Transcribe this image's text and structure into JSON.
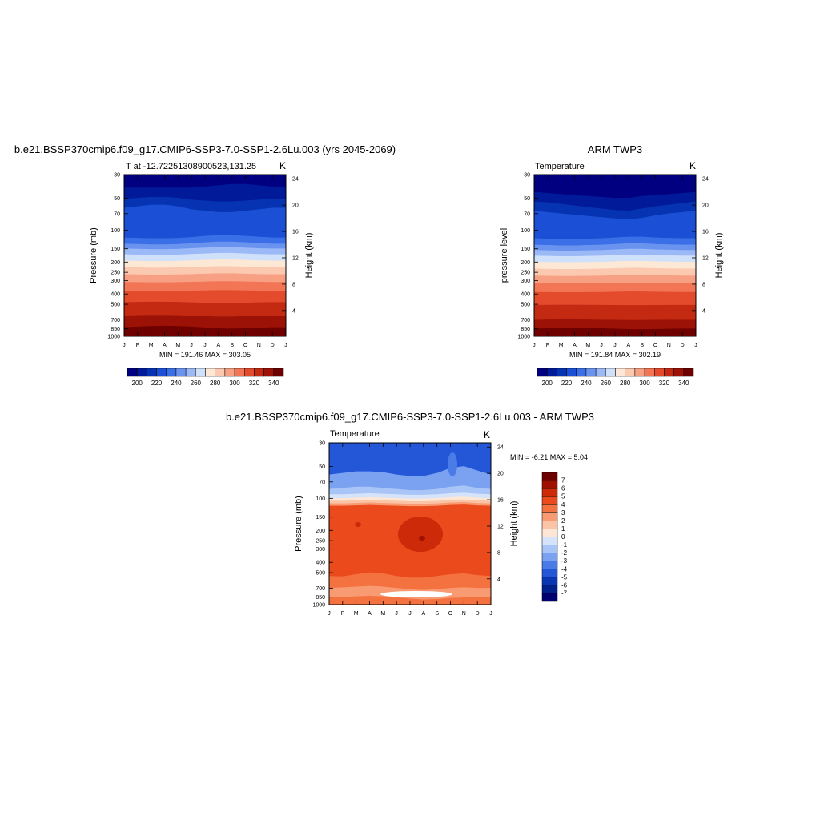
{
  "chart_data": [
    {
      "type": "heatmap",
      "title": "b.e21.BSSP370cmip6.f09_g17.CMIP6-SSP3-7.0-SSP1-2.6Lu.003 (yrs 2045-2069)",
      "subtitle_left": "T at -12.72251308900523,131.25",
      "subtitle_right": "K",
      "ylabel": "Pressure (mb)",
      "ylabel_right": "Height (km)",
      "x_ticks": [
        "J",
        "F",
        "M",
        "A",
        "M",
        "J",
        "J",
        "A",
        "S",
        "O",
        "N",
        "D",
        "J"
      ],
      "y_ticks": [
        "30",
        "50",
        "70",
        "100",
        "150",
        "200",
        "250",
        "300",
        "400",
        "500",
        "700",
        "850",
        "1000"
      ],
      "y_ticks_right": [
        "24",
        "20",
        "16",
        "12",
        "8",
        "4"
      ],
      "stats": "MIN = 191.46 MAX = 303.05",
      "min": 191.46,
      "max": 303.05,
      "colorbar": {
        "ticks": [
          "200",
          "220",
          "240",
          "260",
          "280",
          "300",
          "320",
          "340"
        ]
      }
    },
    {
      "type": "heatmap",
      "title": "ARM TWP3",
      "subtitle_left": "Temperature",
      "subtitle_right": "K",
      "ylabel": "pressure level",
      "ylabel_right": "Height (km)",
      "x_ticks": [
        "J",
        "F",
        "M",
        "A",
        "M",
        "J",
        "J",
        "A",
        "S",
        "O",
        "N",
        "D",
        "J"
      ],
      "y_ticks": [
        "30",
        "50",
        "70",
        "100",
        "150",
        "200",
        "250",
        "300",
        "400",
        "500",
        "700",
        "850",
        "1000"
      ],
      "y_ticks_right": [
        "24",
        "20",
        "16",
        "12",
        "8",
        "4"
      ],
      "stats": "MIN = 191.84 MAX = 302.19",
      "min": 191.84,
      "max": 302.19,
      "colorbar": {
        "ticks": [
          "200",
          "220",
          "240",
          "260",
          "280",
          "300",
          "320",
          "340"
        ]
      }
    },
    {
      "type": "heatmap",
      "title": "b.e21.BSSP370cmip6.f09_g17.CMIP6-SSP3-7.0-SSP1-2.6Lu.003 - ARM TWP3",
      "subtitle_left": "Temperature",
      "subtitle_right": "K",
      "ylabel": "Pressure (mb)",
      "ylabel_right": "Height (km)",
      "x_ticks": [
        "J",
        "F",
        "M",
        "A",
        "M",
        "J",
        "J",
        "A",
        "S",
        "O",
        "N",
        "D",
        "J"
      ],
      "y_ticks": [
        "30",
        "50",
        "70",
        "100",
        "150",
        "200",
        "250",
        "300",
        "400",
        "500",
        "700",
        "850",
        "1000"
      ],
      "y_ticks_right": [
        "24",
        "20",
        "16",
        "12",
        "8",
        "4"
      ],
      "stats": "MIN =  -6.21 MAX =   5.04",
      "min": -6.21,
      "max": 5.04,
      "colorbar": {
        "ticks": [
          "7",
          "6",
          "5",
          "4",
          "3",
          "2",
          "1",
          "0",
          "-1",
          "-2",
          "-3",
          "-4",
          "-5",
          "-6",
          "-7"
        ]
      }
    }
  ],
  "colors": {
    "abs_scale": [
      "#000080",
      "#001a99",
      "#0533b2",
      "#1a4fd6",
      "#3a6fe8",
      "#6a93f0",
      "#9bb8f7",
      "#cfe0fb",
      "#fde8d6",
      "#fbc9b0",
      "#f7a083",
      "#f27656",
      "#e44b2c",
      "#c42a12",
      "#9c1206",
      "#6e0000"
    ],
    "diff_scale": [
      "#6e0000",
      "#a01000",
      "#cc2a08",
      "#ea4a1c",
      "#f47240",
      "#f89a72",
      "#fbc4a6",
      "#fde6d4",
      "#d6e4fb",
      "#a9c4f6",
      "#7aa2f0",
      "#4b7be6",
      "#2456d8",
      "#0a36b4",
      "#00208c",
      "#000070"
    ]
  }
}
